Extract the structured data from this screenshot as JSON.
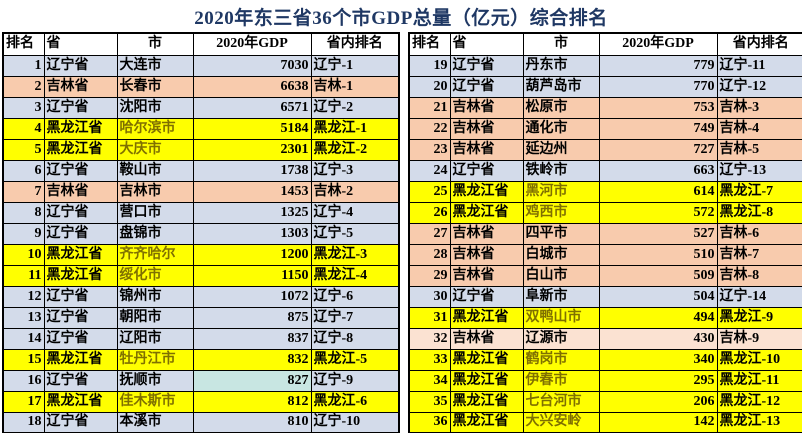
{
  "title": "2020年东三省36个市GDP总量（亿元）综合排名",
  "columns": [
    "排名",
    "省",
    "市",
    "2020年GDP",
    "省内排名"
  ],
  "style": {
    "title_color": "#1F3864",
    "number_color": "#24365E",
    "province_row_bg": {
      "辽宁省": "#D3DBEA",
      "吉林省": "#F8CBAD",
      "黑龙江省": "#FFFF00"
    },
    "row32_bg": "#FBE2D2",
    "row16_gdp_cell_bg": "#C8E6E2",
    "heilongjiang_city_text": "#7F7000",
    "default_text": "#000000"
  },
  "chart_data": {
    "type": "table",
    "title": "2020年东三省36个市GDP总量（亿元）综合排名",
    "columns": [
      "排名",
      "省",
      "市",
      "2020年GDP",
      "省内排名"
    ],
    "records": [
      {
        "rank": 1,
        "province": "辽宁省",
        "city": "大连市",
        "gdp": 7030,
        "province_rank": "辽宁-1"
      },
      {
        "rank": 2,
        "province": "吉林省",
        "city": "长春市",
        "gdp": 6638,
        "province_rank": "吉林-1"
      },
      {
        "rank": 3,
        "province": "辽宁省",
        "city": "沈阳市",
        "gdp": 6571,
        "province_rank": "辽宁-2"
      },
      {
        "rank": 4,
        "province": "黑龙江省",
        "city": "哈尔滨市",
        "gdp": 5184,
        "province_rank": "黑龙江-1"
      },
      {
        "rank": 5,
        "province": "黑龙江省",
        "city": "大庆市",
        "gdp": 2301,
        "province_rank": "黑龙江-2"
      },
      {
        "rank": 6,
        "province": "辽宁省",
        "city": "鞍山市",
        "gdp": 1738,
        "province_rank": "辽宁-3"
      },
      {
        "rank": 7,
        "province": "吉林省",
        "city": "吉林市",
        "gdp": 1453,
        "province_rank": "吉林-2"
      },
      {
        "rank": 8,
        "province": "辽宁省",
        "city": "营口市",
        "gdp": 1325,
        "province_rank": "辽宁-4"
      },
      {
        "rank": 9,
        "province": "辽宁省",
        "city": "盘锦市",
        "gdp": 1303,
        "province_rank": "辽宁-5"
      },
      {
        "rank": 10,
        "province": "黑龙江省",
        "city": "齐齐哈尔",
        "gdp": 1200,
        "province_rank": "黑龙江-3"
      },
      {
        "rank": 11,
        "province": "黑龙江省",
        "city": "绥化市",
        "gdp": 1150,
        "province_rank": "黑龙江-4"
      },
      {
        "rank": 12,
        "province": "辽宁省",
        "city": "锦州市",
        "gdp": 1072,
        "province_rank": "辽宁-6"
      },
      {
        "rank": 13,
        "province": "辽宁省",
        "city": "朝阳市",
        "gdp": 875,
        "province_rank": "辽宁-7"
      },
      {
        "rank": 14,
        "province": "辽宁省",
        "city": "辽阳市",
        "gdp": 837,
        "province_rank": "辽宁-8"
      },
      {
        "rank": 15,
        "province": "黑龙江省",
        "city": "牡丹江市",
        "gdp": 832,
        "province_rank": "黑龙江-5"
      },
      {
        "rank": 16,
        "province": "辽宁省",
        "city": "抚顺市",
        "gdp": 827,
        "province_rank": "辽宁-9"
      },
      {
        "rank": 17,
        "province": "黑龙江省",
        "city": "佳木斯市",
        "gdp": 812,
        "province_rank": "黑龙江-6"
      },
      {
        "rank": 18,
        "province": "辽宁省",
        "city": "本溪市",
        "gdp": 810,
        "province_rank": "辽宁-10"
      },
      {
        "rank": 19,
        "province": "辽宁省",
        "city": "丹东市",
        "gdp": 779,
        "province_rank": "辽宁-11"
      },
      {
        "rank": 20,
        "province": "辽宁省",
        "city": "葫芦岛市",
        "gdp": 770,
        "province_rank": "辽宁-12"
      },
      {
        "rank": 21,
        "province": "吉林省",
        "city": "松原市",
        "gdp": 753,
        "province_rank": "吉林-3"
      },
      {
        "rank": 22,
        "province": "吉林省",
        "city": "通化市",
        "gdp": 749,
        "province_rank": "吉林-4"
      },
      {
        "rank": 23,
        "province": "吉林省",
        "city": "延边州",
        "gdp": 727,
        "province_rank": "吉林-5"
      },
      {
        "rank": 24,
        "province": "辽宁省",
        "city": "铁岭市",
        "gdp": 663,
        "province_rank": "辽宁-13"
      },
      {
        "rank": 25,
        "province": "黑龙江省",
        "city": "黑河市",
        "gdp": 614,
        "province_rank": "黑龙江-7"
      },
      {
        "rank": 26,
        "province": "黑龙江省",
        "city": "鸡西市",
        "gdp": 572,
        "province_rank": "黑龙江-8"
      },
      {
        "rank": 27,
        "province": "吉林省",
        "city": "四平市",
        "gdp": 527,
        "province_rank": "吉林-6"
      },
      {
        "rank": 28,
        "province": "吉林省",
        "city": "白城市",
        "gdp": 510,
        "province_rank": "吉林-7"
      },
      {
        "rank": 29,
        "province": "吉林省",
        "city": "白山市",
        "gdp": 509,
        "province_rank": "吉林-8"
      },
      {
        "rank": 30,
        "province": "辽宁省",
        "city": "阜新市",
        "gdp": 504,
        "province_rank": "辽宁-14"
      },
      {
        "rank": 31,
        "province": "黑龙江省",
        "city": "双鸭山市",
        "gdp": 494,
        "province_rank": "黑龙江-9"
      },
      {
        "rank": 32,
        "province": "吉林省",
        "city": "辽源市",
        "gdp": 430,
        "province_rank": "吉林-9"
      },
      {
        "rank": 33,
        "province": "黑龙江省",
        "city": "鹤岗市",
        "gdp": 340,
        "province_rank": "黑龙江-10"
      },
      {
        "rank": 34,
        "province": "黑龙江省",
        "city": "伊春市",
        "gdp": 295,
        "province_rank": "黑龙江-11"
      },
      {
        "rank": 35,
        "province": "黑龙江省",
        "city": "七台河市",
        "gdp": 206,
        "province_rank": "黑龙江-12"
      },
      {
        "rank": 36,
        "province": "黑龙江省",
        "city": "大兴安岭",
        "gdp": 142,
        "province_rank": "黑龙江-13"
      }
    ]
  }
}
